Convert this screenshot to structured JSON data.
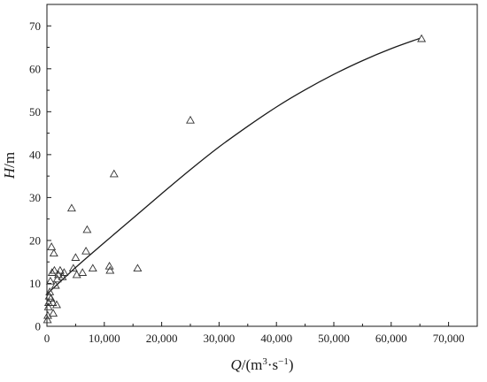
{
  "chart_data": {
    "type": "scatter",
    "title": "",
    "xlabel": {
      "var": "Q",
      "unit_open": "/(m",
      "exp1": "3",
      "mid": "·s",
      "exp2": "−1",
      "unit_close": ")"
    },
    "ylabel": {
      "var": "H",
      "unit": "/m"
    },
    "xlim": [
      0,
      75000
    ],
    "ylim": [
      0,
      75
    ],
    "x_ticks": [
      0,
      10000,
      20000,
      30000,
      40000,
      50000,
      60000,
      70000
    ],
    "x_tick_labels": [
      "0",
      "10,000",
      "20,000",
      "30,000",
      "40,000",
      "50,000",
      "60,000",
      "70,000"
    ],
    "y_ticks": [
      0,
      10,
      20,
      30,
      40,
      50,
      60,
      70
    ],
    "y_tick_labels": [
      "0",
      "10",
      "20",
      "30",
      "40",
      "50",
      "60",
      "70"
    ],
    "grid": false,
    "marker": "open-triangle",
    "series": [
      {
        "kind": "scatter",
        "points": [
          [
            100,
            1.5
          ],
          [
            150,
            2.5
          ],
          [
            250,
            4.5
          ],
          [
            300,
            5.5
          ],
          [
            400,
            7
          ],
          [
            500,
            8
          ],
          [
            600,
            10.5
          ],
          [
            700,
            6.5
          ],
          [
            800,
            18.5
          ],
          [
            900,
            12.5
          ],
          [
            1000,
            5.5
          ],
          [
            1100,
            3
          ],
          [
            1200,
            17
          ],
          [
            1300,
            13
          ],
          [
            1500,
            9.5
          ],
          [
            1700,
            5
          ],
          [
            1800,
            11
          ],
          [
            2000,
            12
          ],
          [
            2300,
            13
          ],
          [
            2700,
            11.5
          ],
          [
            3000,
            12.5
          ],
          [
            4300,
            27.5
          ],
          [
            4600,
            13.5
          ],
          [
            5000,
            16
          ],
          [
            5200,
            12
          ],
          [
            6200,
            12.5
          ],
          [
            6800,
            17.5
          ],
          [
            7000,
            22.5
          ],
          [
            8000,
            13.5
          ],
          [
            10900,
            14
          ],
          [
            11000,
            13
          ],
          [
            11700,
            35.5
          ],
          [
            15800,
            13.5
          ],
          [
            25000,
            48
          ],
          [
            65300,
            67
          ]
        ]
      },
      {
        "kind": "fit-line",
        "points": [
          [
            0,
            7.5
          ],
          [
            5000,
            13.7
          ],
          [
            10000,
            19.5
          ],
          [
            15000,
            25.2
          ],
          [
            20000,
            30.9
          ],
          [
            25000,
            36.5
          ],
          [
            30000,
            41.8
          ],
          [
            35000,
            46.6
          ],
          [
            40000,
            51.1
          ],
          [
            45000,
            55.1
          ],
          [
            50000,
            58.7
          ],
          [
            55000,
            61.9
          ],
          [
            60000,
            64.7
          ],
          [
            65000,
            67.1
          ]
        ]
      }
    ]
  }
}
